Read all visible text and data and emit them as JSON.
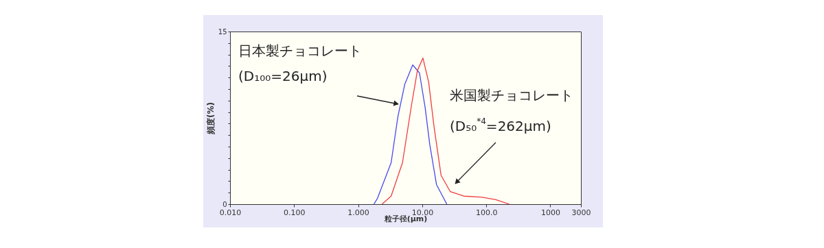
{
  "chart_data": {
    "type": "line",
    "xlabel": "粒子径(μm)",
    "ylabel": "頻度(%)",
    "log": "x",
    "xlim": [
      0.01,
      3000
    ],
    "xticks": [
      {
        "value": 0.01,
        "label": "0.010"
      },
      {
        "value": 0.1,
        "label": "0.100"
      },
      {
        "value": 1,
        "label": "1.000"
      },
      {
        "value": 10,
        "label": "10.00"
      },
      {
        "value": 100,
        "label": "100.0"
      },
      1000,
      3000
    ],
    "ylim": [
      0,
      15
    ],
    "yticks": [
      0,
      {
        "value": 1,
        "label": null
      },
      {
        "value": 2,
        "label": null
      },
      {
        "value": 3,
        "label": null
      },
      {
        "value": 4,
        "label": null
      },
      {
        "value": 5,
        "label": null
      },
      {
        "value": 6,
        "label": null
      },
      {
        "value": 7,
        "label": null
      },
      {
        "value": 8,
        "label": null
      },
      {
        "value": 9,
        "label": null
      },
      {
        "value": 10,
        "label": null
      },
      {
        "value": 11,
        "label": null
      },
      {
        "value": 12,
        "label": null
      },
      {
        "value": 13,
        "label": null
      },
      {
        "value": 14,
        "label": null
      },
      15
    ],
    "series": [
      {
        "color": "#4848f0",
        "x": [
          1.76,
          2.0,
          3.27,
          4.17,
          5.33,
          7.1,
          9.06,
          11.1,
          13.1,
          16.7,
          24.2
        ],
        "values": [
          0,
          0.5,
          3.6,
          7.6,
          10.4,
          12.1,
          11.4,
          8.4,
          5.2,
          1.7,
          0
        ]
      },
      {
        "color": "#f03c3c",
        "x": [
          2.36,
          3.27,
          4.92,
          6.8,
          8.4,
          10.25,
          12.6,
          15.4,
          19.7,
          27.3,
          44.6,
          85.7,
          140,
          229
        ],
        "values": [
          0,
          0.7,
          3.6,
          8.6,
          11.6,
          12.7,
          10.6,
          6.6,
          2.5,
          1.1,
          0.7,
          0.6,
          0.4,
          0
        ]
      }
    ],
    "annotations": [
      "日本製チョコレート\n(D₁₀₀=26μm)",
      "米国製チョコレート\n(D₅₀$^{*4}$=262μm)"
    ]
  }
}
